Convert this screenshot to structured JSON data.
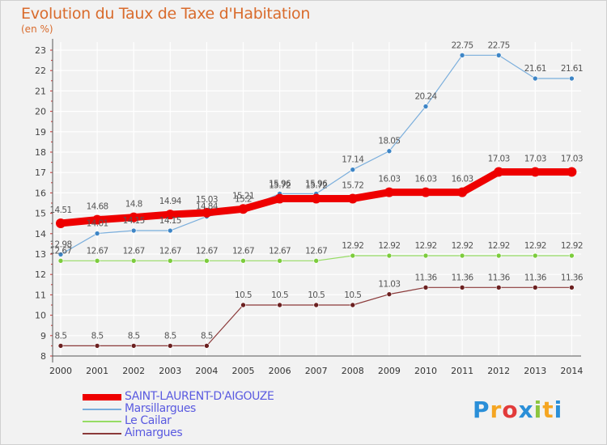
{
  "header": {
    "title": "Evolution du Taux de Taxe d'Habitation",
    "unit": "(en %)"
  },
  "brand": {
    "letters": [
      "P",
      "r",
      "o",
      "x",
      "i",
      "t",
      "i"
    ],
    "colors": [
      "#2a8fd8",
      "#f5a623",
      "#e23b3b",
      "#2a8fd8",
      "#8cc63f",
      "#f5a623",
      "#2a8fd8"
    ]
  },
  "chart_data": {
    "type": "line",
    "title": "Evolution du Taux de Taxe d'Habitation",
    "ylabel": "(en %)",
    "xlabel": "",
    "x": [
      "2000",
      "2001",
      "2002",
      "2003",
      "2004",
      "2005",
      "2006",
      "2007",
      "2008",
      "2009",
      "2010",
      "2011",
      "2012",
      "2013",
      "2014"
    ],
    "ylim": [
      8,
      23
    ],
    "yticks": [
      8,
      9,
      10,
      11,
      12,
      13,
      14,
      15,
      16,
      17,
      18,
      19,
      20,
      21,
      22,
      23
    ],
    "grid": true,
    "legend_position": "bottom-left",
    "series": [
      {
        "name": "SAINT-LAURENT-D'AIGOUZE",
        "color": "#ee0000",
        "width": 9,
        "values": [
          14.51,
          14.68,
          14.8,
          14.94,
          15.03,
          15.21,
          15.72,
          15.72,
          15.72,
          16.03,
          16.03,
          16.03,
          17.03,
          17.03,
          17.03
        ],
        "labels": [
          "14.51",
          "14.68",
          "14.8",
          "14.94",
          "15.03",
          "15.21",
          "15.72",
          "15.72",
          "15.72",
          "16.03",
          "16.03",
          "16.03",
          "17.03",
          "17.03",
          "17.03"
        ]
      },
      {
        "name": "Marsillargues",
        "color": "#7aaedc",
        "width": 1.2,
        "values": [
          12.98,
          14.01,
          14.15,
          14.15,
          14.84,
          15.2,
          15.96,
          15.96,
          17.14,
          18.05,
          20.24,
          22.75,
          22.75,
          21.61,
          21.61
        ],
        "labels": [
          "12.98",
          "14.01",
          "14.15",
          "14.15",
          "14.84",
          "15.2",
          "15.96",
          "15.96",
          "17.14",
          "18.05",
          "20.24",
          "22.75",
          "22.75",
          "21.61",
          "21.61"
        ]
      },
      {
        "name": "Le Cailar",
        "color": "#96dc64",
        "width": 1.2,
        "values": [
          12.67,
          12.67,
          12.67,
          12.67,
          12.67,
          12.67,
          12.67,
          12.67,
          12.92,
          12.92,
          12.92,
          12.92,
          12.92,
          12.92,
          12.92
        ],
        "labels": [
          "12.67",
          "12.67",
          "12.67",
          "12.67",
          "12.67",
          "12.67",
          "12.67",
          "12.67",
          "12.92",
          "12.92",
          "12.92",
          "12.92",
          "12.92",
          "12.92",
          "12.92"
        ]
      },
      {
        "name": "Aimargues",
        "color": "#8b3a3a",
        "width": 1.2,
        "values": [
          8.5,
          8.5,
          8.5,
          8.5,
          8.5,
          10.5,
          10.5,
          10.5,
          10.5,
          11.03,
          11.36,
          11.36,
          11.36,
          11.36,
          11.36
        ],
        "labels": [
          "8.5",
          "8.5",
          "8.5",
          "8.5",
          "8.5",
          "10.5",
          "10.5",
          "10.5",
          "10.5",
          "11.03",
          "11.36",
          "11.36",
          "11.36",
          "11.36",
          "11.36"
        ]
      }
    ]
  }
}
